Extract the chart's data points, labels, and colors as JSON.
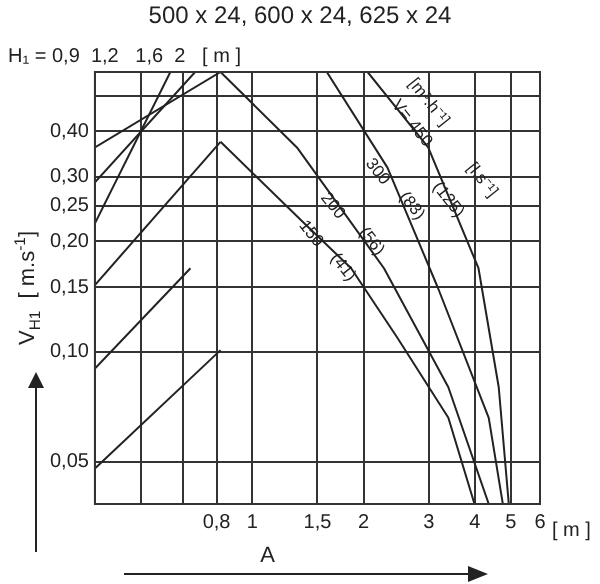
{
  "chart_data": {
    "type": "line",
    "title": "500 x 24, 600 x 24, 625 x 24",
    "xlabel": "A",
    "ylabel": "V$_{H1}$  [ m.s$^{-1}$]",
    "log": "xy",
    "grid": true,
    "marker": "none",
    "line_style": "solid",
    "xlim": [
      0.375,
      6
    ],
    "ylim": [
      0.0384,
      0.58
    ],
    "xticks": [
      {
        "value": 0.5,
        "label": null
      },
      {
        "value": 0.65,
        "label": null
      },
      {
        "value": 0.8,
        "label": "0,8"
      },
      1,
      {
        "value": 1.5,
        "label": "1,5"
      },
      2,
      3,
      4,
      5,
      6
    ],
    "yticks": [
      {
        "value": 0.05,
        "label": "0,05"
      },
      {
        "value": 0.1,
        "label": "0,10"
      },
      {
        "value": 0.15,
        "label": "0,15"
      },
      {
        "value": 0.2,
        "label": "0,20"
      },
      {
        "value": 0.25,
        "label": "0,25"
      },
      {
        "value": 0.3,
        "label": "0,30"
      },
      {
        "value": 0.4,
        "label": "0,40"
      },
      {
        "value": 0.5,
        "label": null
      }
    ],
    "series": [
      {
        "color": "#222222",
        "x": [
          0.82,
          1.37,
          1.85,
          2.47,
          3.39,
          3.99
        ],
        "values": [
          0.374,
          0.226,
          0.169,
          0.109,
          0.066,
          0.0384
        ]
      },
      {
        "color": "#222222",
        "x": [
          0.82,
          1.32,
          2.27,
          3.39,
          4.36
        ],
        "values": [
          0.58,
          0.361,
          0.169,
          0.08,
          0.0384
        ]
      },
      {
        "color": "#222222",
        "x": [
          1.59,
          2.32,
          3.18,
          4.36,
          4.76
        ],
        "values": [
          0.58,
          0.318,
          0.149,
          0.066,
          0.0384
        ]
      },
      {
        "color": "#222222",
        "x": [
          2.05,
          2.99,
          4.09,
          4.64,
          4.94
        ],
        "values": [
          0.58,
          0.361,
          0.169,
          0.08,
          0.0384
        ]
      },
      {
        "color": "#222222",
        "x": [
          0.375,
          0.82
        ],
        "values": [
          0.361,
          0.58
        ]
      },
      {
        "color": "#222222",
        "x": [
          0.375,
          0.7
        ],
        "values": [
          0.29,
          0.58
        ]
      },
      {
        "color": "#222222",
        "x": [
          0.375,
          0.6
        ],
        "values": [
          0.224,
          0.58
        ]
      },
      {
        "color": "#222222",
        "x": [
          0.375,
          0.82
        ],
        "values": [
          0.152,
          0.374
        ]
      },
      {
        "color": "#222222",
        "x": [
          0.375,
          0.68
        ],
        "values": [
          0.09,
          0.169
        ]
      },
      {
        "color": "#222222",
        "x": [
          0.375,
          0.82
        ],
        "values": [
          0.048,
          0.101
        ]
      }
    ],
    "annotations": [
      "H₁ = 0,9  1,2   1,6  2   [ m ]",
      "[ m ]",
      "[m³.h⁻¹]",
      {
        "text": "V= 450",
        "x": 2.7,
        "y": 0.42
      },
      "[l.s⁻¹]",
      {
        "text": "(125)",
        "x": 3.39,
        "y": 0.26
      },
      {
        "text": "300",
        "x": 2.18,
        "y": 0.31
      },
      {
        "text": "(83)",
        "x": 2.7,
        "y": 0.25
      },
      {
        "text": "200",
        "x": 1.65,
        "y": 0.25
      },
      {
        "text": "(56)",
        "x": 2.1,
        "y": 0.2
      },
      {
        "text": "150",
        "x": 1.44,
        "y": 0.21
      },
      {
        "text": "(41)",
        "x": 1.76,
        "y": 0.17
      }
    ]
  }
}
